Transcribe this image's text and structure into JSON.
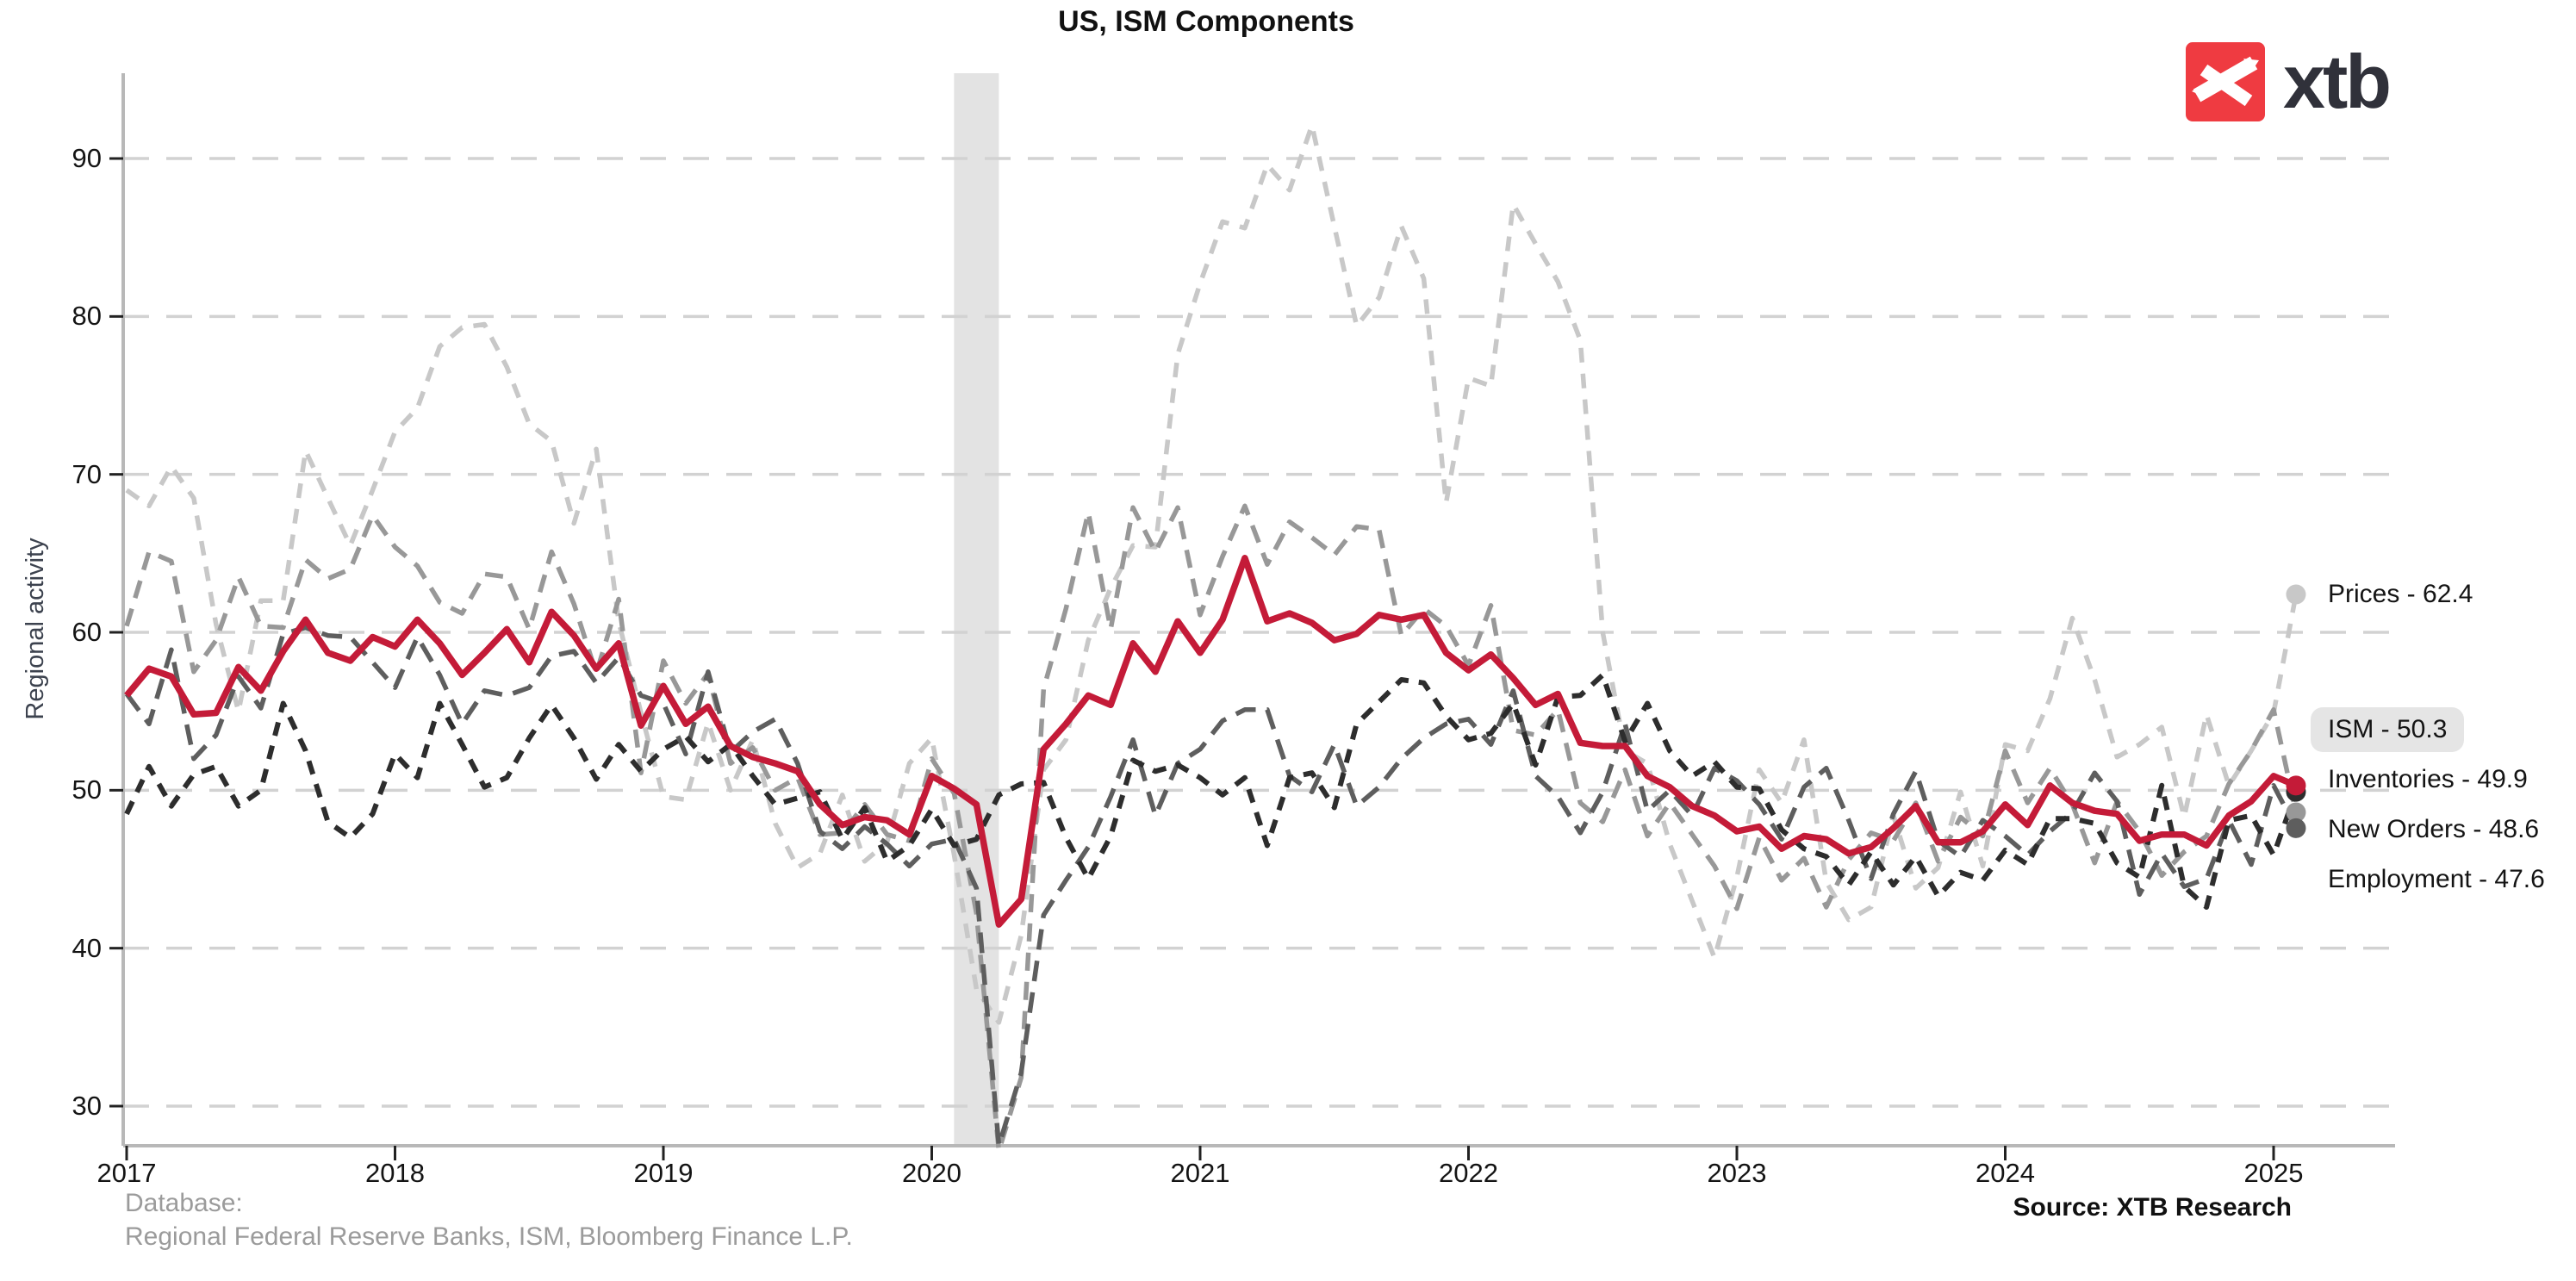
{
  "title": "US, ISM Components",
  "logo": {
    "text": "xtb",
    "square_color": "#EF3B41",
    "glyph": "x-swoosh-icon"
  },
  "footer": {
    "database_label": "Database:",
    "database_value": "Regional Federal Reserve Banks, ISM, Bloomberg Finance L.P.",
    "source": "Source: XTB Research"
  },
  "chart_data": {
    "type": "line",
    "title": "US, ISM Components",
    "xlabel": "",
    "ylabel": "Regional activity",
    "ylim": [
      27.5,
      95
    ],
    "grid": "horizontal-dashed",
    "grid_color": "#D2D2D2",
    "axis_color": "#B8B8B8",
    "x_start_year": 2017,
    "x_frequency": "monthly",
    "x_end": "2025-02",
    "xticks": [
      2017,
      2018,
      2019,
      2020,
      2021,
      2022,
      2023,
      2024,
      2025
    ],
    "yticks": [
      30,
      40,
      50,
      60,
      70,
      80,
      90
    ],
    "recession_band": {
      "from": 2020.083,
      "to": 2020.25,
      "color": "#E3E3E3"
    },
    "series": [
      {
        "name": "Prices",
        "color": "#C8C8C8",
        "style": "dashed",
        "dash": "17 13",
        "width": 5.5,
        "last_value": 62.4,
        "end_label": "Prices - 62.4",
        "boxed": false,
        "values": [
          69,
          68,
          70.5,
          68.5,
          60.5,
          55,
          62,
          62,
          71.5,
          68.5,
          65.5,
          69,
          72.7,
          74.2,
          78.1,
          79.3,
          79.5,
          76.8,
          73.2,
          72.1,
          66.9,
          71.6,
          60.7,
          54.9,
          49.6,
          49.4,
          54.3,
          50,
          53.2,
          47.9,
          45.1,
          46,
          49.7,
          45.5,
          46.7,
          51.7,
          53.3,
          45.9,
          37.4,
          35.3,
          40.8,
          51.3,
          53.2,
          59.5,
          62.8,
          65.5,
          65.4,
          77.6,
          82.1,
          86,
          85.6,
          89.6,
          88,
          92.1,
          85.7,
          79.4,
          81.2,
          85.7,
          82.4,
          68.2,
          76.1,
          75.6,
          87.1,
          84.6,
          82.2,
          78.5,
          60,
          52.5,
          51.7,
          46.6,
          43,
          39.4,
          44.5,
          51.3,
          49.2,
          53.2,
          44.2,
          41.8,
          42.6,
          48.4,
          43.8,
          45.1,
          49.9,
          45.2,
          52.9,
          52.5,
          55.8,
          60.9,
          57,
          52.1,
          52.9,
          54,
          48.3,
          54.8,
          50.3,
          52.5,
          54.9,
          62.4
        ]
      },
      {
        "name": "New Orders",
        "color": "#989898",
        "style": "dashed",
        "dash": "21 13",
        "width": 5.5,
        "last_value": 48.6,
        "end_label": "New Orders - 48.6",
        "boxed": false,
        "values": [
          60.4,
          65.1,
          64.5,
          57.5,
          59.5,
          63.5,
          60.4,
          60.3,
          64.6,
          63.4,
          64,
          67.4,
          65.4,
          64.2,
          61.9,
          61.2,
          63.7,
          63.5,
          60.2,
          65.1,
          61.8,
          57.4,
          62.1,
          51.1,
          58.2,
          55.5,
          57.4,
          51.7,
          52.7,
          50,
          50.8,
          47.2,
          47.3,
          49.1,
          47.2,
          46.8,
          52,
          49.8,
          42.2,
          27.1,
          31.8,
          56.4,
          61.5,
          67.6,
          60.2,
          67.9,
          65.1,
          67.9,
          61.1,
          64.8,
          68,
          64.3,
          67,
          66,
          64.9,
          66.7,
          66.5,
          59.8,
          61.5,
          60.4,
          57.9,
          61.7,
          53.8,
          53.5,
          55.1,
          49.2,
          48,
          51.3,
          47.1,
          49.2,
          47.2,
          45.2,
          42.5,
          47,
          44.3,
          45.7,
          42.6,
          45.6,
          47.3,
          46.8,
          49.2,
          45.5,
          48.3,
          47.1,
          52.5,
          49.2,
          51.4,
          49.1,
          45.4,
          49.3,
          47.4,
          44.6,
          46.1,
          47.1,
          50.4,
          52.5,
          55.1,
          48.6
        ]
      },
      {
        "name": "Employment",
        "color": "#5E5E5E",
        "style": "dashed",
        "dash": "24 13",
        "width": 5.5,
        "last_value": 47.6,
        "end_label": "Employment - 47.6",
        "boxed": false,
        "values": [
          56.1,
          54.2,
          58.9,
          52,
          53.5,
          57.2,
          55.2,
          59.9,
          60.3,
          59.8,
          59.7,
          58.1,
          56.5,
          59.7,
          57.3,
          54.2,
          56.3,
          56,
          56.5,
          58.5,
          58.8,
          56.8,
          58.4,
          56,
          55.5,
          52.3,
          57.5,
          52.4,
          53.7,
          54.5,
          51.7,
          47.4,
          46.3,
          47.7,
          46.6,
          45.2,
          46.6,
          46.9,
          43.8,
          27.5,
          32.1,
          42.1,
          44.3,
          46.4,
          49.6,
          53.2,
          48.4,
          51.7,
          52.6,
          54.4,
          55.1,
          55.1,
          50.9,
          49.9,
          52.9,
          49,
          50.2,
          52,
          53.3,
          54.2,
          54.5,
          52.9,
          56.3,
          50.9,
          49.6,
          47.3,
          49.9,
          54.2,
          48.7,
          50,
          48.4,
          51.4,
          50.6,
          49.1,
          46.9,
          50.2,
          51.4,
          48.1,
          44.4,
          48.5,
          51.2,
          46.8,
          45.8,
          48.1,
          47.1,
          45.9,
          47.4,
          48.6,
          51.1,
          49.3,
          43.4,
          46,
          43.9,
          44.4,
          48.1,
          45.3,
          50.3,
          47.6
        ]
      },
      {
        "name": "Inventories",
        "color": "#2D2D2D",
        "style": "dashed",
        "dash": "16 12",
        "width": 6,
        "last_value": 49.9,
        "end_label": "Inventories - 49.9",
        "boxed": false,
        "values": [
          48.5,
          51.5,
          49,
          51,
          51.5,
          49,
          50,
          55.5,
          52.5,
          48,
          47,
          48.5,
          52.3,
          50.8,
          55.5,
          52.9,
          50.2,
          50.8,
          53.3,
          55.4,
          53.3,
          50.7,
          52.9,
          51.2,
          52.6,
          53.4,
          51.8,
          52.9,
          50.9,
          49.1,
          49.5,
          49.9,
          46.9,
          48.9,
          45.5,
          46.5,
          48.8,
          46.5,
          46.9,
          49.7,
          50.4,
          50.5,
          47,
          44.4,
          47.1,
          51.9,
          51.2,
          51.6,
          50.8,
          49.7,
          50.8,
          46.5,
          50.8,
          51.1,
          48.9,
          54.2,
          55.6,
          57,
          56.8,
          54.7,
          53.2,
          53.6,
          55.5,
          51.6,
          55.9,
          56,
          57.3,
          53.1,
          55.5,
          52.5,
          50.9,
          51.8,
          50.2,
          50.1,
          47.5,
          46.3,
          45.8,
          44,
          46.1,
          44,
          45.8,
          43.3,
          44.8,
          44.3,
          46.2,
          45.3,
          48.2,
          48.2,
          47.9,
          45.4,
          44.5,
          50.3,
          43.9,
          42.6,
          48.1,
          48.4,
          45.9,
          49.9
        ]
      },
      {
        "name": "ISM",
        "color": "#C41B38",
        "style": "solid",
        "dash": "",
        "width": 7.5,
        "last_value": 50.3,
        "end_label": "ISM - 50.3",
        "boxed": true,
        "values": [
          56,
          57.7,
          57.2,
          54.8,
          54.9,
          57.8,
          56.3,
          58.8,
          60.8,
          58.7,
          58.2,
          59.7,
          59.1,
          60.8,
          59.3,
          57.3,
          58.7,
          60.2,
          58.1,
          61.3,
          59.8,
          57.7,
          59.3,
          54.1,
          56.6,
          54.2,
          55.3,
          52.8,
          52.1,
          51.7,
          51.2,
          49.1,
          47.8,
          48.3,
          48.1,
          47.2,
          50.9,
          50.1,
          49.1,
          41.5,
          43.1,
          52.6,
          54.2,
          56,
          55.4,
          59.3,
          57.5,
          60.7,
          58.7,
          60.8,
          64.7,
          60.7,
          61.2,
          60.6,
          59.5,
          59.9,
          61.1,
          60.8,
          61.1,
          58.7,
          57.6,
          58.6,
          57.1,
          55.4,
          56.1,
          53,
          52.8,
          52.8,
          50.9,
          50.2,
          49,
          48.4,
          47.4,
          47.7,
          46.3,
          47.1,
          46.9,
          46,
          46.4,
          47.6,
          49,
          46.7,
          46.7,
          47.4,
          49.1,
          47.8,
          50.3,
          49.2,
          48.7,
          48.5,
          46.8,
          47.2,
          47.2,
          46.5,
          48.4,
          49.3,
          50.9,
          50.3
        ]
      }
    ]
  }
}
